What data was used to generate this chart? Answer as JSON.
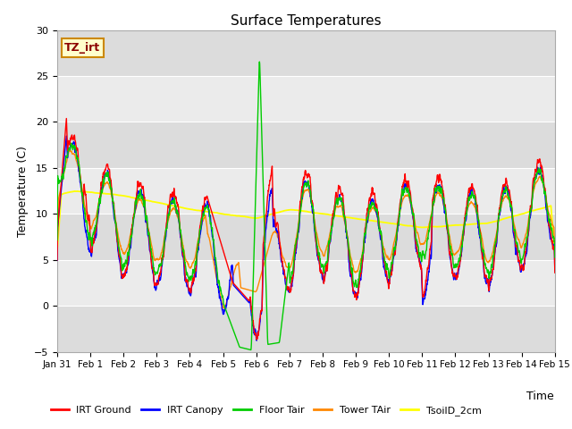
{
  "title": "Surface Temperatures",
  "xlabel": "Time",
  "ylabel": "Temperature (C)",
  "ylim": [
    -5,
    30
  ],
  "n_days": 15,
  "annotation_text": "TZ_irt",
  "legend_labels": [
    "IRT Ground",
    "IRT Canopy",
    "Floor Tair",
    "Tower TAir",
    "TsoilD_2cm"
  ],
  "legend_colors": [
    "#ff0000",
    "#0000ff",
    "#00cc00",
    "#ff8800",
    "#ffff00"
  ],
  "tick_labels": [
    "Jan 31",
    "Feb 1",
    "Feb 2",
    "Feb 3",
    "Feb 4",
    "Feb 5",
    "Feb 6",
    "Feb 7",
    "Feb 8",
    "Feb 9",
    "Feb 10",
    "Feb 11",
    "Feb 12",
    "Feb 13",
    "Feb 14",
    "Feb 15"
  ],
  "band_colors": [
    "#dcdcdc",
    "#f0f0f0"
  ],
  "plot_bg": "#f0f0f0",
  "fig_bg": "#ffffff",
  "title_fontsize": 11,
  "axis_fontsize": 9,
  "tick_fontsize": 8,
  "annotation_fontsize": 9,
  "linewidth": 1.0
}
